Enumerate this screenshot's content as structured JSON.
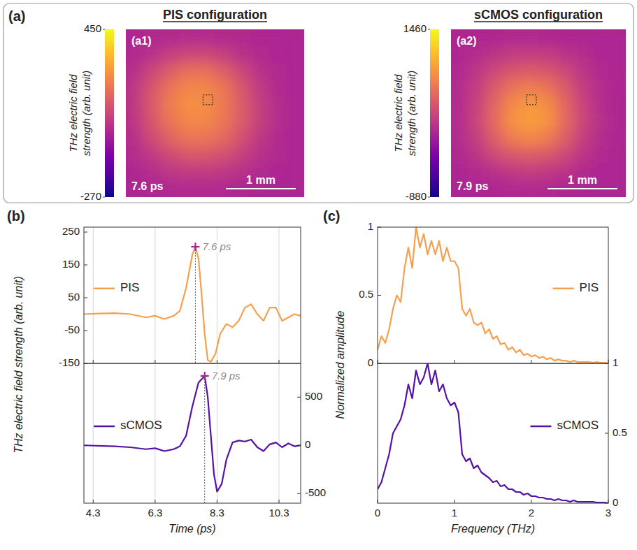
{
  "chart_data": [
    {
      "type": "heatmap",
      "group_label": "(a)",
      "title": "PIS configuration",
      "panel_label": "(a1)",
      "annotation": "7.6 ps",
      "scale_bar_label": "1 mm",
      "colorbar_label": "THz electric field strength (arb. unit)",
      "colorbar": {
        "range": [
          -270,
          450
        ],
        "ticks": [
          -270,
          450
        ]
      },
      "cells": [
        [
          10,
          15,
          20,
          25,
          25,
          20,
          15,
          10,
          5,
          5
        ],
        [
          20,
          40,
          70,
          90,
          90,
          70,
          40,
          20,
          10,
          5
        ],
        [
          40,
          90,
          150,
          190,
          190,
          150,
          90,
          40,
          15,
          5
        ],
        [
          60,
          130,
          200,
          240,
          240,
          200,
          130,
          60,
          20,
          5
        ],
        [
          60,
          140,
          220,
          260,
          250,
          210,
          140,
          70,
          25,
          5
        ],
        [
          55,
          130,
          200,
          240,
          240,
          200,
          140,
          70,
          25,
          5
        ],
        [
          40,
          100,
          160,
          200,
          200,
          170,
          110,
          55,
          20,
          5
        ],
        [
          25,
          60,
          100,
          130,
          130,
          110,
          70,
          35,
          15,
          5
        ],
        [
          10,
          30,
          50,
          60,
          60,
          50,
          35,
          20,
          10,
          5
        ],
        [
          5,
          10,
          15,
          20,
          20,
          15,
          10,
          5,
          5,
          5
        ]
      ]
    },
    {
      "type": "heatmap",
      "title": "sCMOS configuration",
      "panel_label": "(a2)",
      "annotation": "7.9 ps",
      "scale_bar_label": "1 mm",
      "colorbar_label": "THz electric field strength (arb. unit)",
      "colorbar": {
        "range": [
          -880,
          1460
        ],
        "ticks": [
          -880,
          1460
        ]
      },
      "cells": [
        [
          20,
          30,
          40,
          50,
          50,
          40,
          30,
          20,
          10,
          10
        ],
        [
          40,
          80,
          150,
          200,
          220,
          200,
          150,
          80,
          40,
          20
        ],
        [
          60,
          160,
          300,
          420,
          460,
          420,
          300,
          160,
          60,
          30
        ],
        [
          80,
          220,
          450,
          650,
          720,
          650,
          450,
          220,
          80,
          30
        ],
        [
          90,
          260,
          550,
          800,
          900,
          820,
          560,
          270,
          90,
          35
        ],
        [
          90,
          270,
          580,
          850,
          920,
          860,
          580,
          280,
          100,
          35
        ],
        [
          80,
          230,
          480,
          700,
          780,
          700,
          480,
          230,
          80,
          30
        ],
        [
          50,
          150,
          300,
          420,
          460,
          420,
          300,
          150,
          60,
          25
        ],
        [
          30,
          70,
          130,
          180,
          200,
          180,
          130,
          70,
          30,
          20
        ],
        [
          15,
          25,
          40,
          50,
          60,
          50,
          40,
          25,
          15,
          10
        ]
      ]
    },
    {
      "type": "line",
      "panel_label": "(b)",
      "y_label": "THz electric field strength (arb. unit)",
      "xlim": [
        4.0,
        11.0
      ],
      "xticks": [
        4.3,
        6.3,
        8.3,
        10.3
      ],
      "ylim": [
        -150,
        265
      ],
      "yticks": [
        -150,
        -50,
        50,
        150,
        250
      ],
      "grid": "x",
      "tick_labels": "y",
      "legend": "upper left",
      "x": [
        4.0,
        4.5,
        5.0,
        5.5,
        6.0,
        6.3,
        6.6,
        6.9,
        7.1,
        7.3,
        7.5,
        7.6,
        7.7,
        7.8,
        7.9,
        8.0,
        8.1,
        8.25,
        8.4,
        8.6,
        8.8,
        9.0,
        9.2,
        9.4,
        9.6,
        9.8,
        10.0,
        10.2,
        10.4,
        10.6,
        10.8,
        11.0
      ],
      "series": [
        {
          "name": "PIS",
          "color": "#f4a04f",
          "values": [
            0,
            2,
            3,
            0,
            -10,
            -5,
            -15,
            -5,
            10,
            80,
            180,
            205,
            170,
            60,
            -60,
            -140,
            -145,
            -120,
            -60,
            -30,
            -40,
            -20,
            20,
            30,
            0,
            -20,
            20,
            20,
            -20,
            -10,
            0,
            -5
          ]
        }
      ],
      "annotations": [
        {
          "x": 7.6,
          "y": 205,
          "text": "7.6 ps",
          "marker": "plus"
        }
      ]
    },
    {
      "type": "line",
      "x_label": "Time (ps)",
      "xlim": [
        4.0,
        11.0
      ],
      "xticks": [
        4.3,
        6.3,
        8.3,
        10.3
      ],
      "y2lim": [
        -600,
        850
      ],
      "y2ticks": [
        -500,
        0,
        500
      ],
      "grid": "x",
      "legend": "upper left",
      "x": [
        4.0,
        5.0,
        5.5,
        6.0,
        6.3,
        6.6,
        6.9,
        7.1,
        7.3,
        7.5,
        7.7,
        7.9,
        8.0,
        8.1,
        8.2,
        8.3,
        8.45,
        8.6,
        8.8,
        9.0,
        9.2,
        9.4,
        9.6,
        9.8,
        10.0,
        10.2,
        10.4,
        10.6,
        10.8,
        11.0
      ],
      "series": [
        {
          "name": "sCMOS",
          "color": "#5512a6",
          "axis": "y2",
          "values": [
            0,
            -10,
            -20,
            -40,
            -30,
            -60,
            -40,
            -10,
            100,
            400,
            650,
            720,
            500,
            100,
            -300,
            -480,
            -400,
            -150,
            30,
            50,
            40,
            60,
            -20,
            -60,
            10,
            30,
            -20,
            20,
            -10,
            0
          ]
        }
      ],
      "annotations": [
        {
          "x": 7.9,
          "y": 720,
          "text": "7.9 ps",
          "marker": "plus"
        }
      ]
    },
    {
      "type": "line",
      "panel_label": "(c)",
      "y_label": "Normalized amplitude",
      "xlim": [
        0,
        3
      ],
      "xticks": [
        0,
        1,
        2,
        3
      ],
      "ylim": [
        0,
        1
      ],
      "yticks": [
        0,
        0.5,
        1
      ],
      "tick_labels": "y",
      "legend": "upper right",
      "x": [
        0,
        0.05,
        0.1,
        0.15,
        0.2,
        0.25,
        0.3,
        0.35,
        0.4,
        0.45,
        0.5,
        0.55,
        0.6,
        0.65,
        0.7,
        0.75,
        0.8,
        0.85,
        0.9,
        0.95,
        1.0,
        1.05,
        1.1,
        1.15,
        1.2,
        1.25,
        1.3,
        1.35,
        1.4,
        1.45,
        1.5,
        1.55,
        1.6,
        1.65,
        1.7,
        1.75,
        1.8,
        1.85,
        1.9,
        1.95,
        2.0,
        2.05,
        2.1,
        2.15,
        2.2,
        2.25,
        2.3,
        2.35,
        2.4,
        2.45,
        2.5,
        2.55,
        2.6,
        2.65,
        2.7,
        2.75,
        2.8,
        2.85,
        2.9,
        2.95,
        3.0
      ],
      "series": [
        {
          "name": "PIS",
          "color": "#f4a04f",
          "values": [
            0.1,
            0.2,
            0.15,
            0.25,
            0.4,
            0.5,
            0.45,
            0.7,
            0.85,
            0.7,
            1.0,
            0.85,
            0.95,
            0.8,
            0.9,
            0.8,
            0.9,
            0.75,
            0.85,
            0.75,
            0.75,
            0.7,
            0.4,
            0.35,
            0.4,
            0.3,
            0.28,
            0.3,
            0.22,
            0.25,
            0.18,
            0.2,
            0.14,
            0.15,
            0.1,
            0.12,
            0.08,
            0.1,
            0.06,
            0.07,
            0.05,
            0.06,
            0.04,
            0.05,
            0.03,
            0.04,
            0.02,
            0.03,
            0.02,
            0.02,
            0.01,
            0.02,
            0.01,
            0.01,
            0.01,
            0.01,
            0.005,
            0.01,
            0.005,
            0.005,
            0
          ]
        }
      ]
    },
    {
      "type": "line",
      "x_label": "Frequency (THz)",
      "xlim": [
        0,
        3
      ],
      "xticks": [
        0,
        1,
        2,
        3
      ],
      "y2lim": [
        0,
        1
      ],
      "y2ticks": [
        0,
        0.5,
        1
      ],
      "legend": "upper right",
      "x": [
        0,
        0.05,
        0.1,
        0.15,
        0.2,
        0.25,
        0.3,
        0.35,
        0.4,
        0.45,
        0.5,
        0.55,
        0.6,
        0.65,
        0.7,
        0.75,
        0.8,
        0.85,
        0.9,
        0.95,
        1.0,
        1.05,
        1.1,
        1.15,
        1.2,
        1.25,
        1.3,
        1.35,
        1.4,
        1.45,
        1.5,
        1.55,
        1.6,
        1.65,
        1.7,
        1.75,
        1.8,
        1.85,
        1.9,
        1.95,
        2.0,
        2.05,
        2.1,
        2.15,
        2.2,
        2.25,
        2.3,
        2.35,
        2.4,
        2.45,
        2.5,
        2.55,
        2.6,
        2.65,
        2.7,
        2.75,
        2.8,
        2.85,
        2.9,
        2.95,
        3.0
      ],
      "series": [
        {
          "name": "sCMOS",
          "color": "#5512a6",
          "axis": "y2",
          "values": [
            0.1,
            0.15,
            0.25,
            0.35,
            0.5,
            0.55,
            0.6,
            0.7,
            0.85,
            0.75,
            0.95,
            0.85,
            0.9,
            1.0,
            0.85,
            0.95,
            0.8,
            0.85,
            0.75,
            0.7,
            0.72,
            0.65,
            0.35,
            0.3,
            0.32,
            0.25,
            0.27,
            0.22,
            0.2,
            0.18,
            0.15,
            0.16,
            0.12,
            0.13,
            0.1,
            0.1,
            0.08,
            0.08,
            0.06,
            0.07,
            0.05,
            0.05,
            0.04,
            0.04,
            0.03,
            0.03,
            0.02,
            0.03,
            0.02,
            0.02,
            0.01,
            0.02,
            0.01,
            0.01,
            0.01,
            0.01,
            0.01,
            0.005,
            0.005,
            0.005,
            0
          ]
        }
      ]
    }
  ]
}
